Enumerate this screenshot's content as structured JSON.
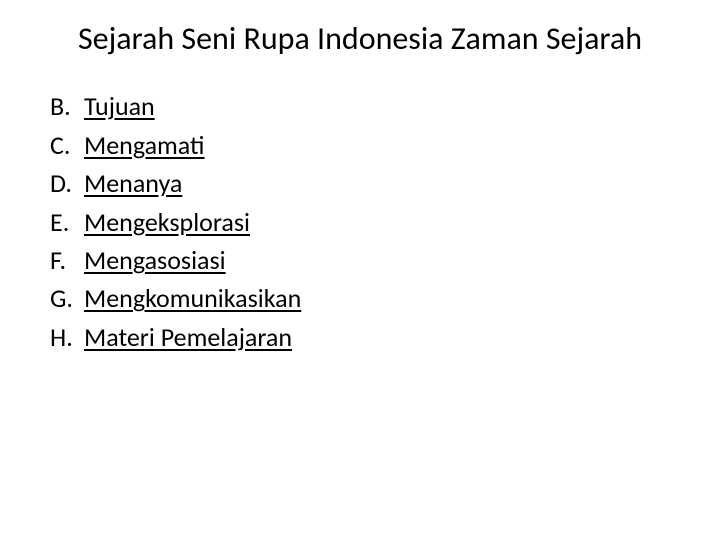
{
  "title": "Sejarah Seni Rupa Indonesia Zaman Sejarah",
  "items": [
    {
      "letter": "B.",
      "label": "Tujuan"
    },
    {
      "letter": "C.",
      "label": "Mengamati"
    },
    {
      "letter": "D.",
      "label": "Menanya"
    },
    {
      "letter": "E.",
      "label": "Mengeksplorasi"
    },
    {
      "letter": "F.",
      "label": "Mengasosiasi"
    },
    {
      "letter": "G.",
      "label": "Mengkomunikasikan"
    },
    {
      "letter": "H.",
      "label": "Materi Pemelajaran"
    }
  ],
  "colors": {
    "background": "#ffffff",
    "text": "#000000"
  },
  "typography": {
    "title_fontsize": 32,
    "item_fontsize": 26,
    "font_family": "Calibri"
  }
}
